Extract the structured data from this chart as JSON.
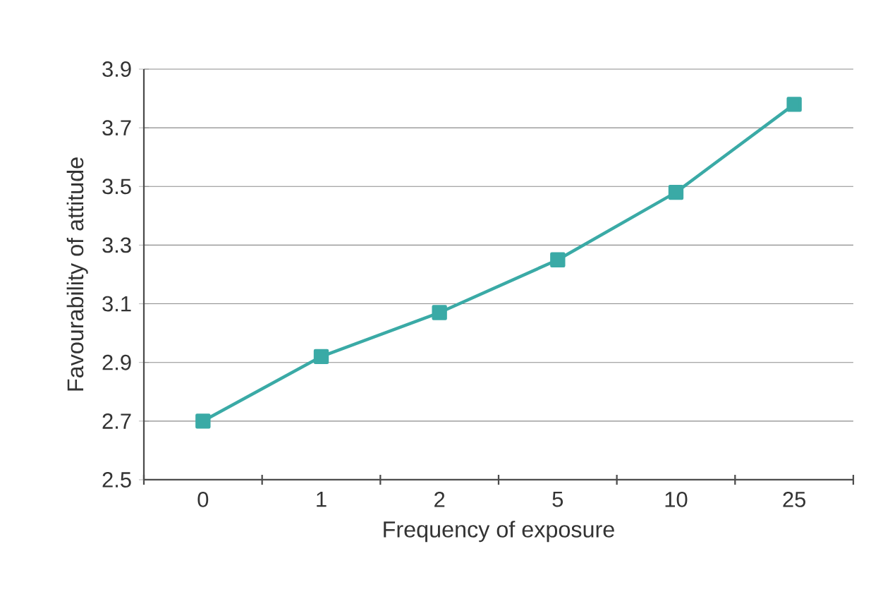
{
  "chart_data": {
    "type": "line",
    "xlabel": "Frequency of exposure",
    "ylabel": "Favourability of attitude",
    "categories": [
      "0",
      "1",
      "2",
      "5",
      "10",
      "25"
    ],
    "values": [
      2.7,
      2.92,
      3.07,
      3.25,
      3.48,
      3.78
    ],
    "color": "#3aaaa6",
    "marker": "square",
    "line_style": "solid",
    "ylim": [
      2.5,
      3.9
    ],
    "yticks": [
      2.5,
      2.7,
      2.9,
      3.1,
      3.3,
      3.5,
      3.7,
      3.9
    ],
    "grid": "y"
  }
}
